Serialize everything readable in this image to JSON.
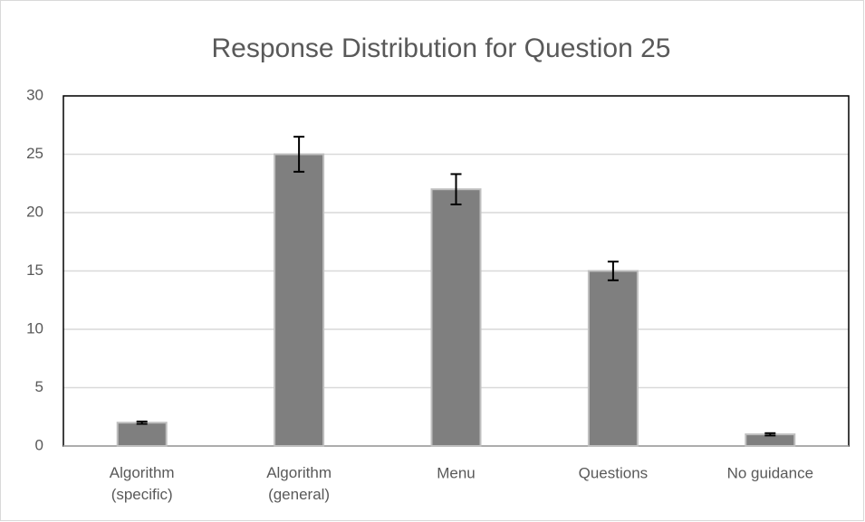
{
  "chart_data": {
    "type": "bar",
    "title": "Response Distribution for Question 25",
    "categories": [
      "Algorithm\n(specific)",
      "Algorithm\n(general)",
      "Menu",
      "Questions",
      "No guidance"
    ],
    "values": [
      2,
      25,
      22,
      15,
      1
    ],
    "errors": [
      0.1,
      1.5,
      1.3,
      0.8,
      0.1
    ],
    "color": "#7f7f7f",
    "ylim": [
      0,
      30
    ],
    "yticks": [
      0,
      5,
      10,
      15,
      20,
      25,
      30
    ],
    "grid": true
  }
}
